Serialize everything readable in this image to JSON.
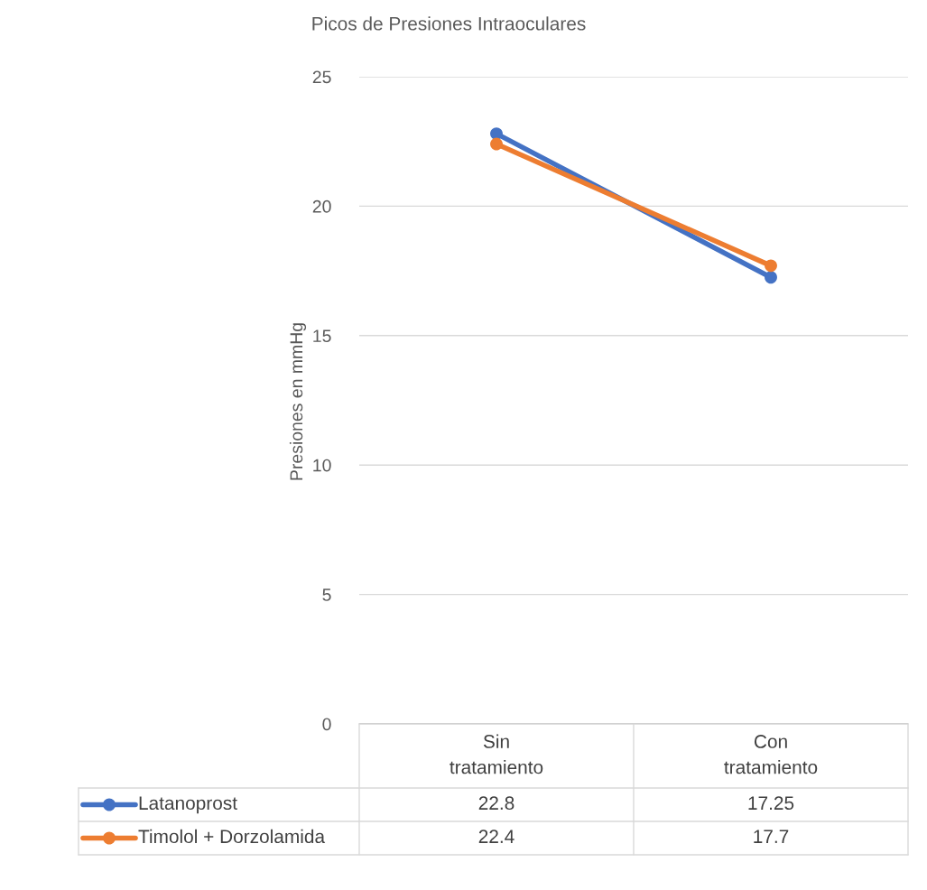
{
  "chart_data": {
    "type": "line",
    "title": "Picos de Presiones Intraoculares",
    "ylabel": "Presiones en mmHg",
    "categories": [
      "Sin\ntratamiento",
      "Con\ntratamiento"
    ],
    "series": [
      {
        "name": "Latanoprost",
        "color": "#4472c4",
        "values": [
          22.8,
          17.25
        ]
      },
      {
        "name": "Timolol + Dorzolamida",
        "color": "#ed7d31",
        "values": [
          22.4,
          17.7
        ]
      }
    ],
    "ylim": [
      0,
      25
    ],
    "yticks": [
      0,
      5,
      10,
      15,
      20,
      25
    ],
    "grid": "y",
    "marker": "circle",
    "line_style": "solid",
    "data_labels": true,
    "legend": "bottom"
  }
}
